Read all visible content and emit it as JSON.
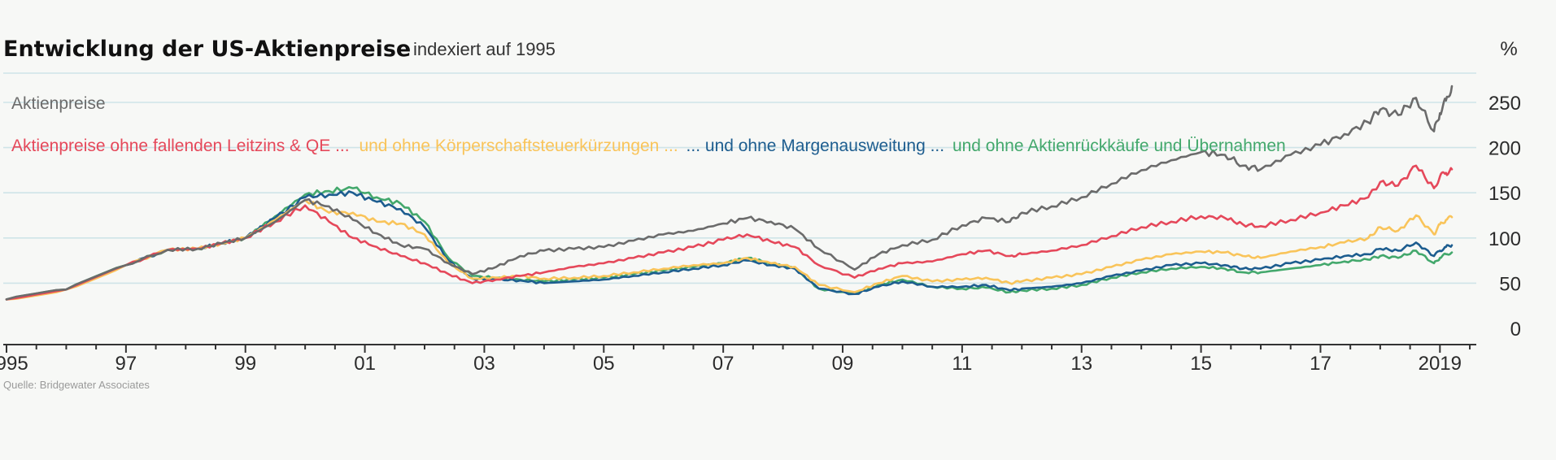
{
  "chart_data": {
    "type": "line",
    "title": "Entwicklung  der US-Aktienpreise",
    "subtitle": "indexiert auf 1995",
    "y_unit": "%",
    "source": "Quelle: Bridgewater Associates",
    "xlim": [
      1995,
      2019.2
    ],
    "ylim": [
      0,
      250
    ],
    "x_ticks": [
      {
        "x": 1995,
        "label": "1995"
      },
      {
        "x": 1997,
        "label": "97"
      },
      {
        "x": 1999,
        "label": "99"
      },
      {
        "x": 2001,
        "label": "01"
      },
      {
        "x": 2003,
        "label": "03"
      },
      {
        "x": 2005,
        "label": "05"
      },
      {
        "x": 2007,
        "label": "07"
      },
      {
        "x": 2009,
        "label": "09"
      },
      {
        "x": 2011,
        "label": "11"
      },
      {
        "x": 2013,
        "label": "13"
      },
      {
        "x": 2015,
        "label": "15"
      },
      {
        "x": 2017,
        "label": "17"
      },
      {
        "x": 2019,
        "label": "2019"
      }
    ],
    "y_ticks": [
      {
        "y": 0,
        "label": "0"
      },
      {
        "y": 50,
        "label": "50"
      },
      {
        "y": 100,
        "label": "100"
      },
      {
        "y": 150,
        "label": "150"
      },
      {
        "y": 200,
        "label": "200"
      },
      {
        "y": 250,
        "label": "250"
      }
    ],
    "grid": "horizontal",
    "legend_placement": "top-left",
    "series": [
      {
        "name": "Aktienpreise",
        "color": "#6b6b6b",
        "points": [
          [
            1995,
            32
          ],
          [
            1996,
            43
          ],
          [
            1997,
            70
          ],
          [
            1997.7,
            87
          ],
          [
            1998.2,
            88
          ],
          [
            1998.6,
            94
          ],
          [
            1999,
            100
          ],
          [
            1999.5,
            118
          ],
          [
            2000,
            142
          ],
          [
            2000.4,
            135
          ],
          [
            2000.8,
            120
          ],
          [
            2001.2,
            105
          ],
          [
            2001.6,
            92
          ],
          [
            2002,
            88
          ],
          [
            2002.4,
            72
          ],
          [
            2002.8,
            60
          ],
          [
            2003.2,
            68
          ],
          [
            2003.6,
            80
          ],
          [
            2004,
            86
          ],
          [
            2004.5,
            88
          ],
          [
            2005,
            90
          ],
          [
            2005.5,
            97
          ],
          [
            2006,
            104
          ],
          [
            2006.5,
            108
          ],
          [
            2007,
            116
          ],
          [
            2007.4,
            122
          ],
          [
            2007.8,
            118
          ],
          [
            2008.2,
            110
          ],
          [
            2008.6,
            88
          ],
          [
            2009.2,
            65
          ],
          [
            2009.6,
            82
          ],
          [
            2010,
            92
          ],
          [
            2010.5,
            98
          ],
          [
            2011,
            114
          ],
          [
            2011.4,
            122
          ],
          [
            2011.8,
            118
          ],
          [
            2012,
            128
          ],
          [
            2012.5,
            135
          ],
          [
            2013,
            145
          ],
          [
            2013.5,
            160
          ],
          [
            2014,
            175
          ],
          [
            2014.5,
            186
          ],
          [
            2015,
            195
          ],
          [
            2015.4,
            192
          ],
          [
            2015.7,
            180
          ],
          [
            2016,
            176
          ],
          [
            2016.5,
            192
          ],
          [
            2017,
            203
          ],
          [
            2017.4,
            215
          ],
          [
            2017.8,
            228
          ],
          [
            2018,
            242
          ],
          [
            2018.3,
            236
          ],
          [
            2018.6,
            255
          ],
          [
            2018.9,
            218
          ],
          [
            2019,
            238
          ],
          [
            2019.1,
            252
          ],
          [
            2019.2,
            268
          ]
        ]
      },
      {
        "name": "Aktienpreise  ohne fallenden Leitzins  &  QE ...",
        "color": "#e5485a",
        "points": [
          [
            1995,
            32
          ],
          [
            1996,
            43
          ],
          [
            1997,
            70
          ],
          [
            1997.7,
            87
          ],
          [
            1998.2,
            88
          ],
          [
            1998.6,
            94
          ],
          [
            1999,
            100
          ],
          [
            1999.5,
            118
          ],
          [
            2000,
            136
          ],
          [
            2000.4,
            118
          ],
          [
            2000.8,
            100
          ],
          [
            2001.2,
            90
          ],
          [
            2001.6,
            80
          ],
          [
            2002,
            72
          ],
          [
            2002.4,
            60
          ],
          [
            2002.8,
            50
          ],
          [
            2003.2,
            54
          ],
          [
            2003.6,
            58
          ],
          [
            2004,
            62
          ],
          [
            2004.5,
            68
          ],
          [
            2005,
            72
          ],
          [
            2005.5,
            78
          ],
          [
            2006,
            84
          ],
          [
            2006.5,
            90
          ],
          [
            2007,
            98
          ],
          [
            2007.4,
            104
          ],
          [
            2007.8,
            96
          ],
          [
            2008.2,
            90
          ],
          [
            2008.6,
            70
          ],
          [
            2009.2,
            56
          ],
          [
            2009.6,
            66
          ],
          [
            2010,
            72
          ],
          [
            2010.5,
            74
          ],
          [
            2011,
            82
          ],
          [
            2011.4,
            86
          ],
          [
            2011.8,
            80
          ],
          [
            2012,
            82
          ],
          [
            2012.5,
            86
          ],
          [
            2013,
            92
          ],
          [
            2013.5,
            102
          ],
          [
            2014,
            112
          ],
          [
            2014.5,
            118
          ],
          [
            2015,
            124
          ],
          [
            2015.4,
            122
          ],
          [
            2015.7,
            115
          ],
          [
            2016,
            113
          ],
          [
            2016.5,
            120
          ],
          [
            2017,
            128
          ],
          [
            2017.4,
            136
          ],
          [
            2017.8,
            145
          ],
          [
            2018,
            162
          ],
          [
            2018.3,
            158
          ],
          [
            2018.6,
            180
          ],
          [
            2018.9,
            155
          ],
          [
            2019,
            168
          ],
          [
            2019.1,
            172
          ],
          [
            2019.2,
            176
          ]
        ]
      },
      {
        "name": "und ohne Körperschaftsteuerkürzungen  ...",
        "color": "#f9c45a",
        "points": [
          [
            1995,
            32
          ],
          [
            1996,
            43
          ],
          [
            1997,
            70
          ],
          [
            1997.7,
            87
          ],
          [
            1998.2,
            88
          ],
          [
            1998.6,
            94
          ],
          [
            1999,
            100
          ],
          [
            1999.5,
            120
          ],
          [
            2000,
            142
          ],
          [
            2000.4,
            128
          ],
          [
            2000.8,
            128
          ],
          [
            2001.2,
            118
          ],
          [
            2001.6,
            116
          ],
          [
            2002,
            104
          ],
          [
            2002.4,
            72
          ],
          [
            2002.8,
            55
          ],
          [
            2003.2,
            56
          ],
          [
            2003.6,
            58
          ],
          [
            2004,
            55
          ],
          [
            2004.5,
            56
          ],
          [
            2005,
            58
          ],
          [
            2005.5,
            62
          ],
          [
            2006,
            66
          ],
          [
            2006.5,
            70
          ],
          [
            2007,
            72
          ],
          [
            2007.4,
            78
          ],
          [
            2007.8,
            72
          ],
          [
            2008.2,
            68
          ],
          [
            2008.6,
            48
          ],
          [
            2009.2,
            40
          ],
          [
            2009.6,
            50
          ],
          [
            2010,
            58
          ],
          [
            2010.5,
            52
          ],
          [
            2011,
            54
          ],
          [
            2011.4,
            56
          ],
          [
            2011.8,
            50
          ],
          [
            2012,
            52
          ],
          [
            2012.5,
            56
          ],
          [
            2013,
            60
          ],
          [
            2013.5,
            68
          ],
          [
            2014,
            76
          ],
          [
            2014.5,
            82
          ],
          [
            2015,
            85
          ],
          [
            2015.4,
            84
          ],
          [
            2015.7,
            80
          ],
          [
            2016,
            78
          ],
          [
            2016.5,
            85
          ],
          [
            2017,
            90
          ],
          [
            2017.4,
            95
          ],
          [
            2017.8,
            100
          ],
          [
            2018,
            112
          ],
          [
            2018.3,
            108
          ],
          [
            2018.6,
            125
          ],
          [
            2018.9,
            104
          ],
          [
            2019,
            115
          ],
          [
            2019.1,
            120
          ],
          [
            2019.2,
            123
          ]
        ]
      },
      {
        "name": "... und ohne Margenausweitung ...",
        "color": "#1d5d8f",
        "points": [
          [
            1995,
            32
          ],
          [
            1996,
            43
          ],
          [
            1997,
            70
          ],
          [
            1997.7,
            87
          ],
          [
            1998.2,
            88
          ],
          [
            1998.6,
            94
          ],
          [
            1999,
            100
          ],
          [
            1999.5,
            122
          ],
          [
            2000,
            145
          ],
          [
            2000.4,
            148
          ],
          [
            2000.8,
            150
          ],
          [
            2001.2,
            140
          ],
          [
            2001.6,
            132
          ],
          [
            2002,
            112
          ],
          [
            2002.4,
            75
          ],
          [
            2002.8,
            55
          ],
          [
            2003.2,
            54
          ],
          [
            2003.6,
            53
          ],
          [
            2004,
            50
          ],
          [
            2004.5,
            52
          ],
          [
            2005,
            54
          ],
          [
            2005.5,
            58
          ],
          [
            2006,
            62
          ],
          [
            2006.5,
            66
          ],
          [
            2007,
            70
          ],
          [
            2007.4,
            75
          ],
          [
            2007.8,
            70
          ],
          [
            2008.2,
            66
          ],
          [
            2008.6,
            44
          ],
          [
            2009.2,
            38
          ],
          [
            2009.6,
            46
          ],
          [
            2010,
            52
          ],
          [
            2010.5,
            46
          ],
          [
            2011,
            46
          ],
          [
            2011.4,
            48
          ],
          [
            2011.8,
            42
          ],
          [
            2012,
            44
          ],
          [
            2012.5,
            46
          ],
          [
            2013,
            50
          ],
          [
            2013.5,
            58
          ],
          [
            2014,
            64
          ],
          [
            2014.5,
            70
          ],
          [
            2015,
            72
          ],
          [
            2015.4,
            70
          ],
          [
            2015.7,
            66
          ],
          [
            2016,
            66
          ],
          [
            2016.5,
            72
          ],
          [
            2017,
            76
          ],
          [
            2017.4,
            80
          ],
          [
            2017.8,
            82
          ],
          [
            2018,
            88
          ],
          [
            2018.3,
            86
          ],
          [
            2018.6,
            95
          ],
          [
            2018.9,
            80
          ],
          [
            2019,
            86
          ],
          [
            2019.1,
            90
          ],
          [
            2019.2,
            92
          ]
        ]
      },
      {
        "name": "und ohne Aktienrückkäufe  und Übernahmen",
        "color": "#43a86c",
        "points": [
          [
            1995,
            32
          ],
          [
            1996,
            43
          ],
          [
            1997,
            70
          ],
          [
            1997.7,
            87
          ],
          [
            1998.2,
            88
          ],
          [
            1998.6,
            94
          ],
          [
            1999,
            100
          ],
          [
            1999.5,
            124
          ],
          [
            2000,
            148
          ],
          [
            2000.4,
            152
          ],
          [
            2000.8,
            155
          ],
          [
            2001.2,
            145
          ],
          [
            2001.6,
            138
          ],
          [
            2002,
            118
          ],
          [
            2002.4,
            78
          ],
          [
            2002.8,
            58
          ],
          [
            2003.2,
            56
          ],
          [
            2003.6,
            54
          ],
          [
            2004,
            52
          ],
          [
            2004.5,
            54
          ],
          [
            2005,
            56
          ],
          [
            2005.5,
            60
          ],
          [
            2006,
            64
          ],
          [
            2006.5,
            68
          ],
          [
            2007,
            72
          ],
          [
            2007.4,
            78
          ],
          [
            2007.8,
            72
          ],
          [
            2008.2,
            66
          ],
          [
            2008.6,
            44
          ],
          [
            2009.2,
            38
          ],
          [
            2009.6,
            48
          ],
          [
            2010,
            54
          ],
          [
            2010.5,
            46
          ],
          [
            2011,
            44
          ],
          [
            2011.4,
            45
          ],
          [
            2011.8,
            40
          ],
          [
            2012,
            42
          ],
          [
            2012.5,
            44
          ],
          [
            2013,
            48
          ],
          [
            2013.5,
            56
          ],
          [
            2014,
            62
          ],
          [
            2014.5,
            66
          ],
          [
            2015,
            68
          ],
          [
            2015.4,
            66
          ],
          [
            2015.7,
            62
          ],
          [
            2016,
            62
          ],
          [
            2016.5,
            66
          ],
          [
            2017,
            70
          ],
          [
            2017.4,
            74
          ],
          [
            2017.8,
            76
          ],
          [
            2018,
            80
          ],
          [
            2018.3,
            78
          ],
          [
            2018.6,
            86
          ],
          [
            2018.9,
            72
          ],
          [
            2019,
            78
          ],
          [
            2019.1,
            82
          ],
          [
            2019.2,
            84
          ]
        ]
      }
    ]
  }
}
